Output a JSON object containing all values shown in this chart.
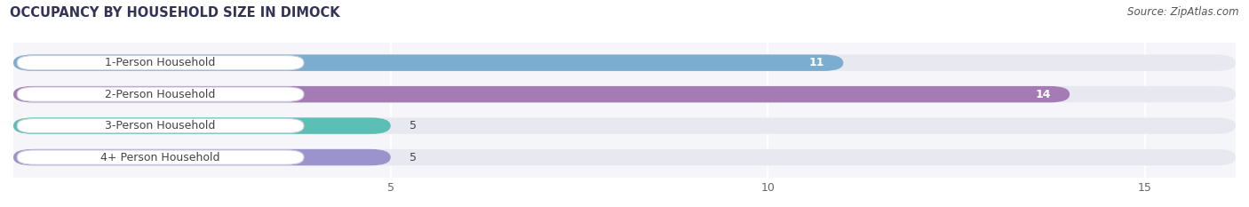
{
  "title": "OCCUPANCY BY HOUSEHOLD SIZE IN DIMOCK",
  "source": "Source: ZipAtlas.com",
  "categories": [
    "1-Person Household",
    "2-Person Household",
    "3-Person Household",
    "4+ Person Household"
  ],
  "values": [
    11,
    14,
    5,
    5
  ],
  "bar_colors": [
    "#7aadcf",
    "#a57bb5",
    "#5bbfb5",
    "#9b94cc"
  ],
  "bar_track_color": "#e8e8f0",
  "background_color": "#ffffff",
  "plot_bg_color": "#f5f5fa",
  "xlim": [
    0,
    16.2
  ],
  "xticks": [
    5,
    10,
    15
  ],
  "title_fontsize": 10.5,
  "source_fontsize": 8.5,
  "label_fontsize": 9,
  "value_fontsize": 9,
  "bar_height": 0.52,
  "label_pill_color": "#ffffff",
  "label_text_color": "#444444",
  "figsize": [
    14.06,
    2.33
  ],
  "dpi": 100
}
